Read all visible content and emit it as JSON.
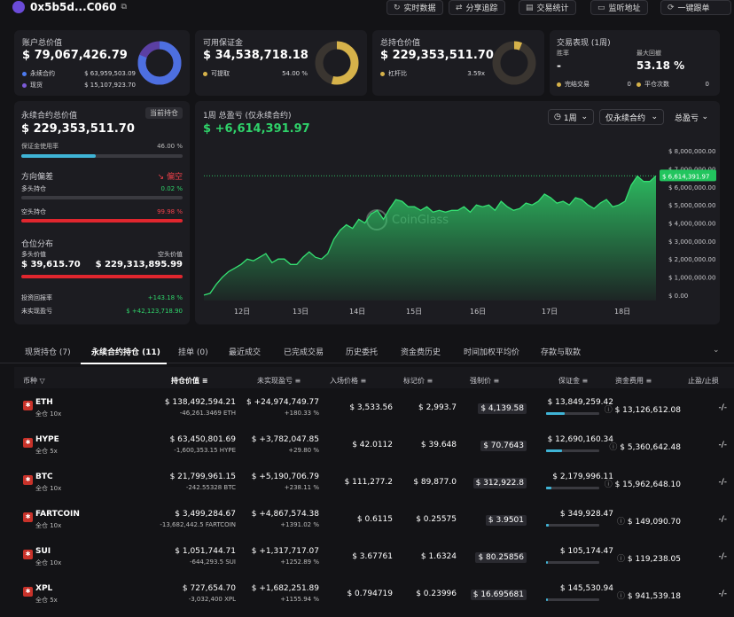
{
  "header": {
    "address": "0x5b5d...C060",
    "buttons": [
      "实时数据",
      "分享追踪",
      "交易统计",
      "监听地址",
      "一键跟单"
    ]
  },
  "summary": [
    {
      "label": "账户总价值",
      "value": "$ 79,067,426.79",
      "rows": [
        {
          "name": "永续合约",
          "val": "$ 63,959,503.09",
          "color": "#4d7bf0"
        },
        {
          "name": "现货",
          "val": "$ 15,107,923.70",
          "color": "#7b5bd8"
        }
      ],
      "donut": {
        "color": "#4d6fe0",
        "fraction": 0.81
      }
    },
    {
      "label": "可用保证金",
      "value": "$ 34,538,718.18",
      "rows": [
        {
          "name": "可提取",
          "val": "54.00 %",
          "color": "#d6b24a"
        }
      ],
      "donut": {
        "color": "#d6b24a",
        "fraction": 0.54
      }
    },
    {
      "label": "总持仓价值",
      "value": "$ 229,353,511.70",
      "rows": [
        {
          "name": "杠杆比",
          "val": "3.59x",
          "color": "#d6b24a"
        }
      ],
      "donut": {
        "color": "#d6b24a",
        "fraction": 0.06
      }
    }
  ],
  "perf": {
    "title": "交易表现 (1周)",
    "winrate_label": "胜率",
    "winrate": "-",
    "maxdd_label": "最大回撤",
    "maxdd": "53.18 %",
    "done_label": "完结交易",
    "done": "0",
    "flat_label": "平仓次数",
    "flat": "0"
  },
  "left": {
    "perp_label": "永续合约总价值",
    "current": "当前持仓",
    "perp_value": "$ 229,353,511.70",
    "margin_label": "保证金使用率",
    "margin_pct": "46.00 %",
    "margin_frac": 0.46,
    "dir_label": "方向偏差",
    "dir_value": "偏空",
    "long_label": "多头持仓",
    "long_pct": "0.02 %",
    "short_label": "空头持仓",
    "short_pct": "99.98 %",
    "dist_label": "仓位分布",
    "long_val_label": "多头价值",
    "short_val_label": "空头价值",
    "long_val": "$ 39,615.70",
    "short_val": "$ 229,313,895.99",
    "roi_label": "投资回报率",
    "roi": "+143.18 %",
    "upnl_label": "未实现盈亏",
    "upnl": "$ +42,123,718.90"
  },
  "pnl": {
    "title": "1周 总盈亏 (仅永续合约)",
    "value": "$ +6,614,391.97",
    "period": "1周",
    "scope": "仅永续合约",
    "mode": "总盈亏",
    "current_tag": "$ 6,614,391.97",
    "watermark": "CoinGlass"
  },
  "chart_data": {
    "type": "area",
    "x_ticks": [
      "12日",
      "13日",
      "14日",
      "15日",
      "16日",
      "17日",
      "18日"
    ],
    "y_ticks": [
      "$ 8,000,000.00",
      "$ 7,000,000.00",
      "$ 6,000,000.00",
      "$ 5,000,000.00",
      "$ 4,000,000.00",
      "$ 3,000,000.00",
      "$ 2,000,000.00",
      "$ 1,000,000.00",
      "$ 0.00"
    ],
    "ylim": [
      -300000,
      8400000
    ],
    "values": [
      0,
      100000,
      600000,
      1000000,
      1300000,
      1500000,
      1700000,
      2000000,
      1900000,
      2100000,
      2300000,
      1800000,
      2000000,
      2000000,
      1700000,
      1700000,
      2100000,
      2400000,
      2100000,
      2000000,
      2300000,
      3100000,
      3600000,
      3900000,
      3700000,
      4200000,
      4000000,
      4500000,
      4700000,
      4200000,
      4800000,
      5300000,
      5200000,
      4900000,
      4900000,
      4700000,
      4900000,
      4600000,
      4700000,
      4600000,
      4700000,
      4700000,
      4900000,
      4600000,
      5000000,
      4900000,
      5000000,
      4700000,
      5200000,
      4900000,
      4700000,
      4800000,
      5100000,
      5000000,
      5200000,
      5600000,
      5400000,
      5100000,
      5200000,
      5000000,
      5400000,
      5300000,
      5000000,
      4800000,
      5100000,
      5300000,
      4900000,
      5000000,
      5200000,
      6100000,
      6600000,
      6300000,
      6300000,
      6614391
    ]
  },
  "tabs": [
    "现货持仓 (7)",
    "永续合约持仓 (11)",
    "挂单 (0)",
    "最近成交",
    "已完成交易",
    "历史委托",
    "资金费历史",
    "时间加权平均价",
    "存款与取款"
  ],
  "columns": [
    "币种",
    "持仓价值",
    "未实现盈亏",
    "入场价格",
    "标记价",
    "强制价",
    "保证金",
    "资金费用",
    "止盈/止损"
  ],
  "positions": [
    {
      "coin": "ETH",
      "lev": "全仓 10x",
      "value": "$ 138,492,594.21",
      "qty": "-46,261.3469 ETH",
      "pnl": "$ +24,974,749.77",
      "pct": "+180.33 %",
      "entry": "$ 3,533.56",
      "mark": "$ 2,993.7",
      "liq": "$ 4,139.58",
      "margin": "$ 13,849,259.42",
      "fund": "$ 13,126,612.08",
      "tp": "-/-",
      "mfrac": 0.35
    },
    {
      "coin": "HYPE",
      "lev": "全仓 5x",
      "value": "$ 63,450,801.69",
      "qty": "-1,600,353.15 HYPE",
      "pnl": "$ +3,782,047.85",
      "pct": "+29.80 %",
      "entry": "$ 42.0112",
      "mark": "$ 39.648",
      "liq": "$ 70.7643",
      "margin": "$ 12,690,160.34",
      "fund": "$ 5,360,642.48",
      "tp": "-/-",
      "mfrac": 0.3
    },
    {
      "coin": "BTC",
      "lev": "全仓 10x",
      "value": "$ 21,799,961.15",
      "qty": "-242.55328 BTC",
      "pnl": "$ +5,190,706.79",
      "pct": "+238.11 %",
      "entry": "$ 111,277.2",
      "mark": "$ 89,877.0",
      "liq": "$ 312,922.8",
      "margin": "$ 2,179,996.11",
      "fund": "$ 15,962,648.10",
      "tp": "-/-",
      "mfrac": 0.1
    },
    {
      "coin": "FARTCOIN",
      "lev": "全仓 10x",
      "value": "$ 3,499,284.67",
      "qty": "-13,682,442.5 FARTCOIN",
      "pnl": "$ +4,867,574.38",
      "pct": "+1391.02 %",
      "entry": "$ 0.6115",
      "mark": "$ 0.25575",
      "liq": "$ 3.9501",
      "margin": "$ 349,928.47",
      "fund": "$ 149,090.70",
      "tp": "-/-",
      "mfrac": 0.05
    },
    {
      "coin": "SUI",
      "lev": "全仓 10x",
      "value": "$ 1,051,744.71",
      "qty": "-644,293.5 SUI",
      "pnl": "$ +1,317,717.07",
      "pct": "+1252.89 %",
      "entry": "$ 3.67761",
      "mark": "$ 1.6324",
      "liq": "$ 80.25856",
      "margin": "$ 105,174.47",
      "fund": "$ 119,238.05",
      "tp": "-/-",
      "mfrac": 0.04
    },
    {
      "coin": "XPL",
      "lev": "全仓 5x",
      "value": "$ 727,654.70",
      "qty": "-3,032,400 XPL",
      "pnl": "$ +1,682,251.89",
      "pct": "+1155.94 %",
      "entry": "$ 0.794719",
      "mark": "$ 0.23996",
      "liq": "$ 16.695681",
      "margin": "$ 145,530.94",
      "fund": "$ 941,539.18",
      "tp": "-/-",
      "mfrac": 0.04
    }
  ]
}
